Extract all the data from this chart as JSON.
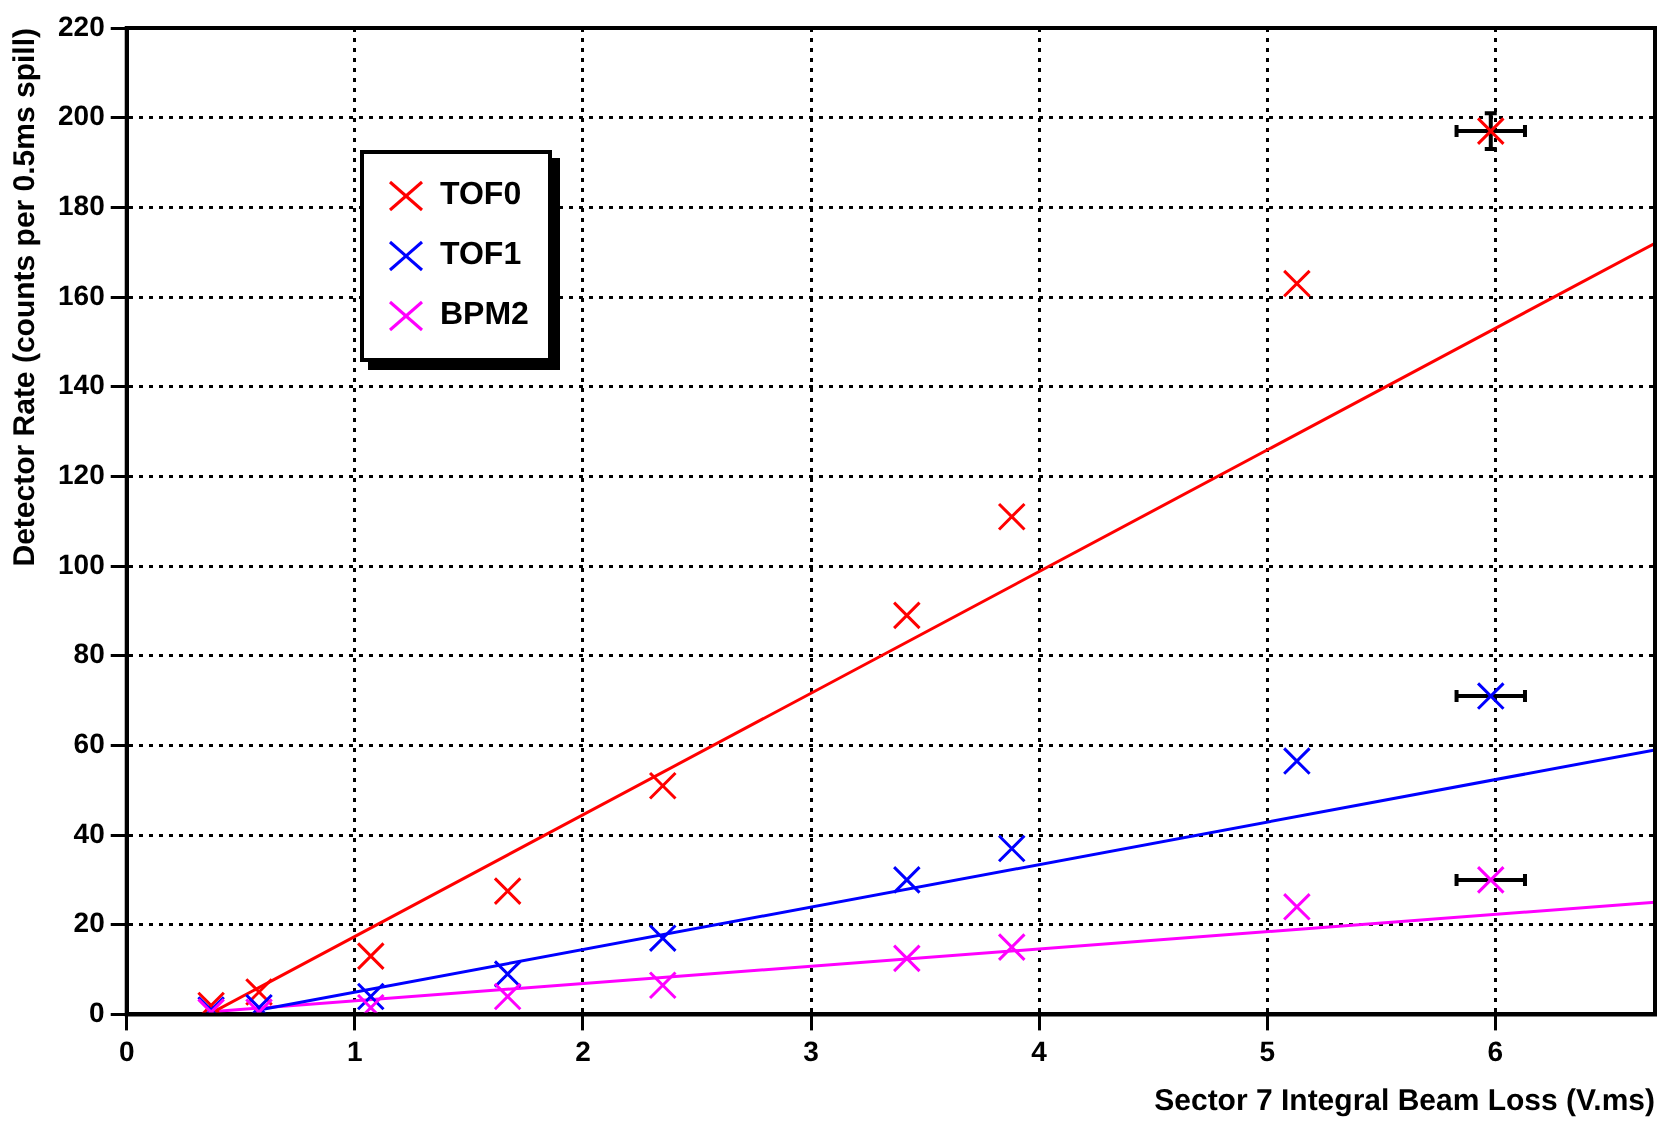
{
  "chart_data": {
    "type": "scatter",
    "xlabel": "Sector 7 Integral Beam Loss (V.ms)",
    "ylabel": "Detector Rate (counts per 0.5ms spill)",
    "x": [
      0.37,
      0.58,
      1.07,
      1.67,
      2.35,
      3.42,
      3.88,
      5.13,
      5.98
    ],
    "series": [
      {
        "name": "TOF0",
        "color": "#ff0000",
        "values": [
          2,
          5,
          13,
          27.5,
          51,
          89,
          111,
          163,
          197
        ],
        "errors": [
          null,
          null,
          null,
          null,
          null,
          null,
          null,
          null,
          4
        ],
        "xerrors": [
          null,
          null,
          null,
          null,
          null,
          null,
          null,
          null,
          0.15
        ]
      },
      {
        "name": "TOF1",
        "color": "#0000ff",
        "values": [
          1,
          1.5,
          4,
          9,
          17,
          30,
          37,
          56.5,
          71
        ],
        "xerrors": [
          null,
          null,
          null,
          null,
          null,
          null,
          null,
          null,
          0.15
        ]
      },
      {
        "name": "BPM2",
        "color": "#ff00ff",
        "values": [
          0.5,
          0.5,
          1.5,
          4,
          6.5,
          12.5,
          15,
          24,
          30
        ],
        "xerrors": [
          null,
          null,
          null,
          null,
          null,
          null,
          null,
          null,
          0.15
        ]
      },
      {
        "type": "line",
        "color": "#ff0000",
        "x": [
          0.37,
          6.7
        ],
        "values": [
          0.3,
          172
        ],
        "marker": "none"
      },
      {
        "type": "line",
        "color": "#0000ff",
        "x": [
          0.58,
          6.7
        ],
        "values": [
          1,
          59
        ],
        "marker": "none"
      },
      {
        "type": "line",
        "color": "#ff00ff",
        "x": [
          0.37,
          6.7
        ],
        "values": [
          0.6,
          25
        ],
        "marker": "none"
      }
    ],
    "xlim": [
      0,
      6.7
    ],
    "xticks": [
      0,
      1,
      2,
      3,
      4,
      5,
      6
    ],
    "ylim": [
      0,
      220
    ],
    "yticks": [
      0,
      20,
      40,
      60,
      80,
      100,
      120,
      140,
      160,
      180,
      200,
      220
    ],
    "grid": true,
    "legend": "top left",
    "marker": "cross"
  }
}
